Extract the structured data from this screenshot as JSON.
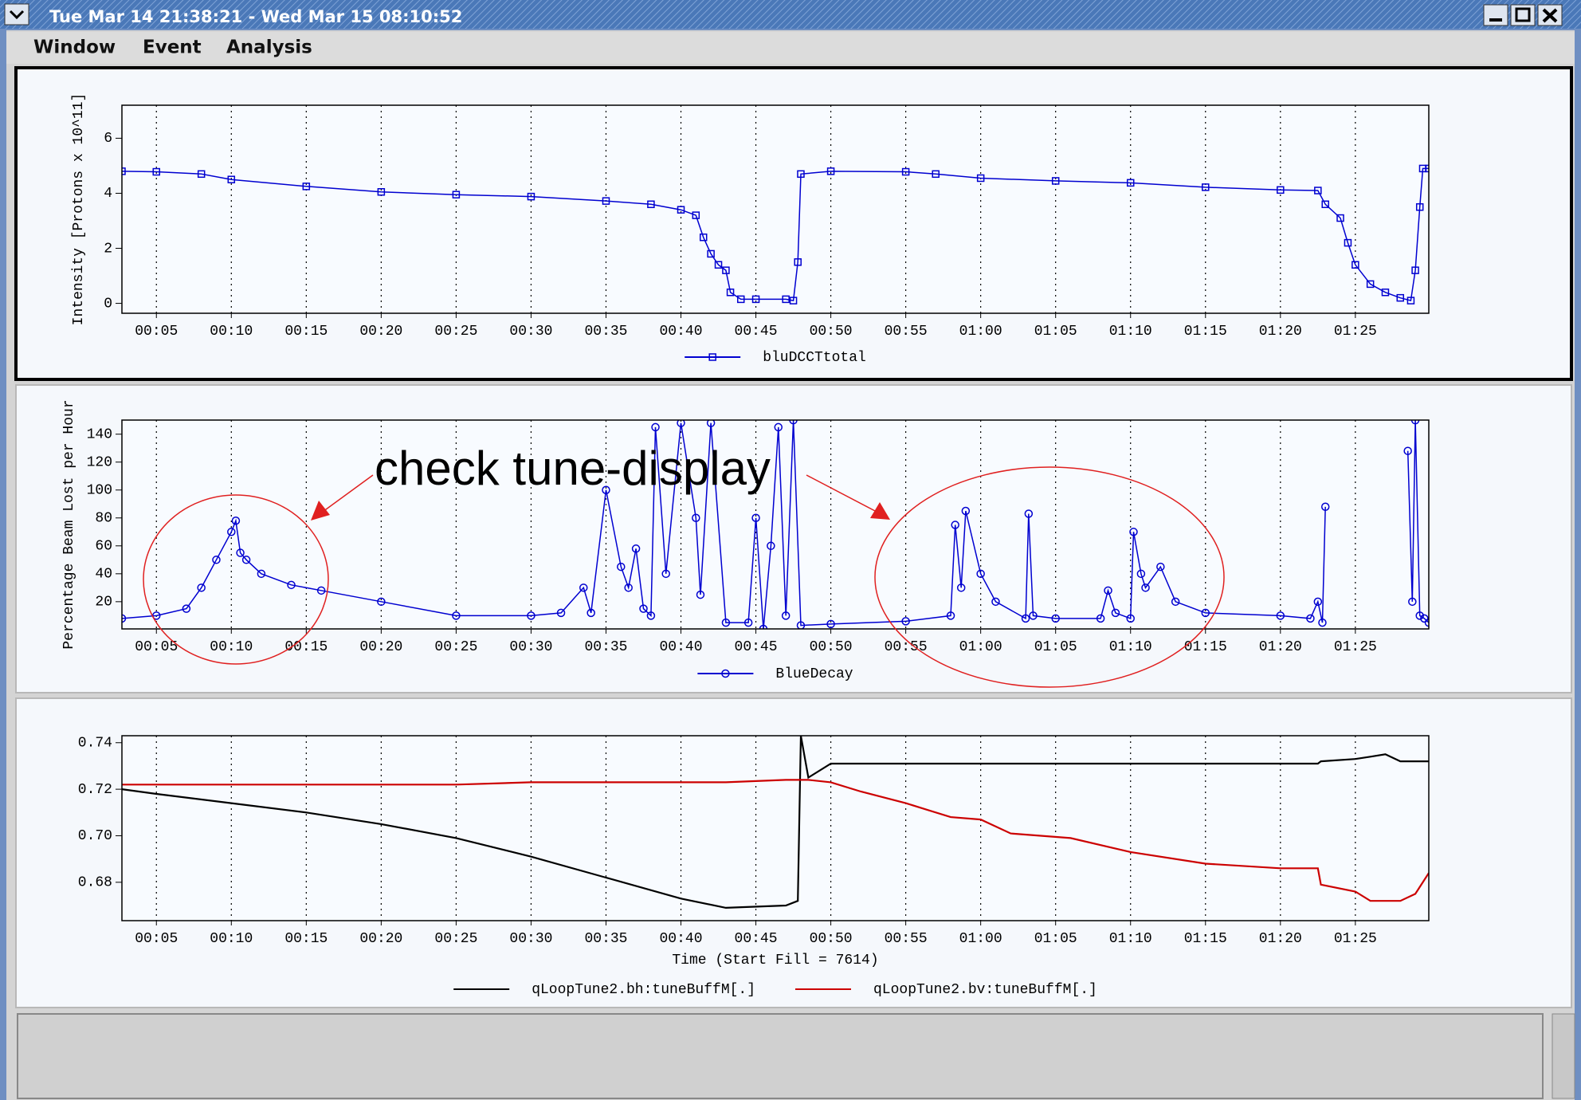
{
  "window": {
    "title": "Tue Mar 14 21:38:21 - Wed Mar 15 08:10:52",
    "menu": [
      "Window",
      "Event",
      "Analysis"
    ]
  },
  "annotation": "check tune-display",
  "chart_data": [
    {
      "type": "line",
      "ylabel": "Intensity [Protons x 10^11]",
      "marker": "square",
      "grid": true,
      "xlim": [
        2.7,
        89.9
      ],
      "ylim": [
        -0.36,
        7.2
      ],
      "xticks": [
        {
          "value": 5,
          "label": "00:05"
        },
        {
          "value": 10,
          "label": "00:10"
        },
        {
          "value": 15,
          "label": "00:15"
        },
        {
          "value": 20,
          "label": "00:20"
        },
        {
          "value": 25,
          "label": "00:25"
        },
        {
          "value": 30,
          "label": "00:30"
        },
        {
          "value": 35,
          "label": "00:35"
        },
        {
          "value": 40,
          "label": "00:40"
        },
        {
          "value": 45,
          "label": "00:45"
        },
        {
          "value": 50,
          "label": "00:50"
        },
        {
          "value": 55,
          "label": "00:55"
        },
        {
          "value": 60,
          "label": "01:00"
        },
        {
          "value": 65,
          "label": "01:05"
        },
        {
          "value": 70,
          "label": "01:10"
        },
        {
          "value": 75,
          "label": "01:15"
        },
        {
          "value": 80,
          "label": "01:20"
        },
        {
          "value": 85,
          "label": "01:25"
        }
      ],
      "yticks": [
        0,
        2,
        4,
        6
      ],
      "x": [
        2.7,
        5,
        8,
        10,
        15,
        20,
        25,
        30,
        35,
        38,
        40,
        41,
        41.5,
        42,
        42.5,
        43,
        43.3,
        44,
        45,
        47,
        47.5,
        47.8,
        48,
        50,
        55,
        57,
        60,
        65,
        70,
        75,
        80,
        82.5,
        83,
        84,
        84.5,
        85,
        86,
        87,
        88,
        88.7,
        89,
        89.3,
        89.5,
        89.9
      ],
      "series": [
        {
          "name": "bluDCCTtotal",
          "color": "#0000d0",
          "values": [
            4.8,
            4.78,
            4.7,
            4.5,
            4.25,
            4.05,
            3.95,
            3.88,
            3.72,
            3.6,
            3.4,
            3.2,
            2.4,
            1.8,
            1.4,
            1.2,
            0.4,
            0.15,
            0.15,
            0.15,
            0.1,
            1.5,
            4.7,
            4.8,
            4.78,
            4.7,
            4.55,
            4.45,
            4.38,
            4.22,
            4.12,
            4.1,
            3.6,
            3.1,
            2.2,
            1.4,
            0.7,
            0.4,
            0.2,
            0.1,
            1.2,
            3.5,
            4.9,
            4.9
          ]
        }
      ]
    },
    {
      "type": "line",
      "ylabel": "Percentage Beam Lost per Hour",
      "marker": "circle",
      "grid": true,
      "xlim": [
        2.7,
        89.9
      ],
      "ylim": [
        0.5,
        150.1
      ],
      "xticks": [
        {
          "value": 5,
          "label": "00:05"
        },
        {
          "value": 10,
          "label": "00:10"
        },
        {
          "value": 15,
          "label": "00:15"
        },
        {
          "value": 20,
          "label": "00:20"
        },
        {
          "value": 25,
          "label": "00:25"
        },
        {
          "value": 30,
          "label": "00:30"
        },
        {
          "value": 35,
          "label": "00:35"
        },
        {
          "value": 40,
          "label": "00:40"
        },
        {
          "value": 45,
          "label": "00:45"
        },
        {
          "value": 50,
          "label": "00:50"
        },
        {
          "value": 55,
          "label": "00:55"
        },
        {
          "value": 60,
          "label": "01:00"
        },
        {
          "value": 65,
          "label": "01:05"
        },
        {
          "value": 70,
          "label": "01:10"
        },
        {
          "value": 75,
          "label": "01:15"
        },
        {
          "value": 80,
          "label": "01:20"
        },
        {
          "value": 85,
          "label": "01:25"
        }
      ],
      "yticks": [
        20,
        40,
        60,
        80,
        100,
        120,
        140
      ],
      "x": [
        2.7,
        5,
        7,
        8,
        9,
        10,
        10.3,
        10.6,
        11,
        12,
        14,
        16,
        20,
        25,
        30,
        32,
        33.5,
        34,
        35,
        36,
        36.5,
        37,
        37.5,
        38,
        38.3,
        39,
        40,
        41,
        41.3,
        42,
        43,
        44.5,
        45,
        45.5,
        46,
        46.5,
        47,
        47.5,
        48,
        50,
        55,
        58,
        58.3,
        58.7,
        59,
        60,
        61,
        63,
        63.2,
        63.5,
        65,
        68,
        68.5,
        69,
        70,
        70.2,
        70.7,
        71,
        72,
        73,
        75,
        80,
        82,
        82.5,
        82.8,
        83,
        85,
        88.5,
        88.8,
        89,
        89.3,
        89.6,
        89.9
      ],
      "series": [
        {
          "name": "BlueDecay",
          "color": "#0000d0",
          "values": [
            8,
            10,
            15,
            30,
            50,
            70,
            78,
            55,
            50,
            40,
            32,
            28,
            20,
            10,
            10,
            12,
            30,
            12,
            100,
            45,
            30,
            58,
            15,
            10,
            145,
            40,
            148,
            80,
            25,
            148,
            5,
            5,
            80,
            0.5,
            60,
            145,
            10,
            150,
            3,
            4,
            6,
            10,
            75,
            30,
            85,
            40,
            20,
            8,
            83,
            10,
            8,
            8,
            28,
            12,
            8,
            70,
            40,
            30,
            45,
            20,
            12,
            10,
            8,
            20,
            5,
            88,
            null,
            128,
            20,
            150,
            10,
            8,
            5
          ]
        }
      ]
    },
    {
      "type": "line",
      "xlabel": "Time (Start Fill = 7614)",
      "grid": true,
      "xlim": [
        2.7,
        89.9
      ],
      "ylim": [
        0.6635,
        0.743
      ],
      "xticks": [
        {
          "value": 5,
          "label": "00:05"
        },
        {
          "value": 10,
          "label": "00:10"
        },
        {
          "value": 15,
          "label": "00:15"
        },
        {
          "value": 20,
          "label": "00:20"
        },
        {
          "value": 25,
          "label": "00:25"
        },
        {
          "value": 30,
          "label": "00:30"
        },
        {
          "value": 35,
          "label": "00:35"
        },
        {
          "value": 40,
          "label": "00:40"
        },
        {
          "value": 45,
          "label": "00:45"
        },
        {
          "value": 50,
          "label": "00:50"
        },
        {
          "value": 55,
          "label": "00:55"
        },
        {
          "value": 60,
          "label": "01:00"
        },
        {
          "value": 65,
          "label": "01:05"
        },
        {
          "value": 70,
          "label": "01:10"
        },
        {
          "value": 75,
          "label": "01:15"
        },
        {
          "value": 80,
          "label": "01:20"
        },
        {
          "value": 85,
          "label": "01:25"
        }
      ],
      "yticks": [
        0.68,
        {
          "value": 0.7,
          "label": "0.70"
        },
        0.72,
        0.74
      ],
      "x": [
        2.7,
        5,
        10,
        15,
        20,
        25,
        30,
        35,
        40,
        43,
        47,
        47.8,
        48,
        48.5,
        50,
        52,
        55,
        58,
        60,
        62,
        66,
        70,
        75,
        80,
        82.5,
        82.7,
        85,
        86,
        87,
        88,
        89,
        89.9
      ],
      "series": [
        {
          "name": "qLoopTune2.bh:tuneBuffM[.]",
          "color": "#000000",
          "values": [
            0.72,
            0.718,
            0.714,
            0.71,
            0.705,
            0.699,
            0.691,
            0.682,
            0.673,
            0.669,
            0.67,
            0.672,
            0.743,
            0.725,
            0.731,
            0.731,
            0.731,
            0.731,
            0.731,
            0.731,
            0.731,
            0.731,
            0.731,
            0.731,
            0.731,
            0.732,
            0.733,
            0.734,
            0.735,
            0.732,
            0.732,
            0.732
          ]
        },
        {
          "name": "qLoopTune2.bv:tuneBuffM[.]",
          "color": "#cc0000",
          "values": [
            0.722,
            0.722,
            0.722,
            0.722,
            0.722,
            0.722,
            0.723,
            0.723,
            0.723,
            0.723,
            0.724,
            0.724,
            0.724,
            0.724,
            0.723,
            0.719,
            0.714,
            0.708,
            0.707,
            0.701,
            0.699,
            0.693,
            0.688,
            0.686,
            0.686,
            0.679,
            0.676,
            0.672,
            0.672,
            0.672,
            0.675,
            0.684
          ]
        }
      ]
    }
  ]
}
